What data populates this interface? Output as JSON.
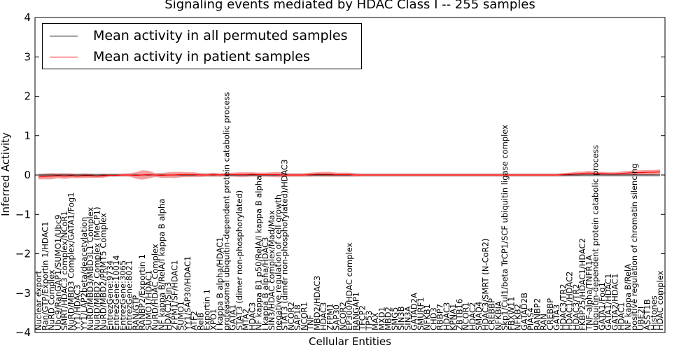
{
  "chart_data": {
    "type": "line",
    "title": "Signaling events mediated by HDAC Class I -- 255 samples",
    "xlabel": "Cellular Entities",
    "ylabel": "Inferred Activity",
    "ylim": [
      -4,
      4
    ],
    "yticks": [
      -4,
      -3,
      -2,
      -1,
      0,
      1,
      2,
      3,
      4
    ],
    "legend_position": "top-left",
    "colors": {
      "permuted": "#000000",
      "patient": "#ff0000",
      "band": "#f08080",
      "grey_band": "#c8c8c8"
    },
    "categories": [
      "Nuclear export",
      "Ran/GTP/Exportin 1/HDAC1",
      "NuRD Complex",
      "Ubc9/RanGAP1/SUMO1/Ubc9",
      "SMRT/HDAC3 complex/NCoR1",
      "NuRD/MBD3 Complex/GATA1/Fog1",
      "YY1/HDAC3",
      "YY1/LAP2beta/deacetylation",
      "NuRD/MBD3/MBD3L1 Complex",
      "NuRD/MBD2 Complex (MeCP1)",
      "NuRD/MBD2/PRMT5 Complex",
      "EntrezGene:9734",
      "EntrezGene:10014",
      "EntrezGene:3065",
      "EntrezGene:8021",
      "RAN/GTP",
      "RANBP2/Exportin 1",
      "SUMO1/HDAC1",
      "NuRD/HDAC Complex",
      "NF kappa B/RelA/I kappa B alpha",
      "HDAC1/Sin3",
      "ZFPM1/SF/HDAC1",
      "SUMO1",
      "YY1/SAP30/HDAC1",
      "ATF2",
      "RelB",
      "Exportin 1",
      "XPO1",
      "I kappa B alpha/HDAC1",
      "proteasomal ubiquitin-dependent protein catabolic process",
      "GATA1",
      "STAT3 (dimer non-phosphorylated)",
      "MTA2",
      "HDAC3",
      "NF kappa B1 p50/RelA/I kappa B alpha",
      "I kappa B alpha/HDAC3",
      "SIN3/HDAC complex/Mad/Max",
      "negative regulation of cell growth",
      "STAT3 (dimer non-phosphorylated)/HDAC3",
      "NCOR2",
      "SAP18",
      "NCOR1",
      "TNF",
      "MBD2/HDAC3",
      "HDAC3",
      "ZFPM1",
      "SAP30",
      "NCOR2",
      "EP300/HDAC complex",
      "RANGAP1",
      "TFCP2",
      "TP53",
      "MAX",
      "MXD1",
      "MBD2",
      "SMG5",
      "SIN3B",
      "SIN3A",
      "GATAD2A",
      "SMURF1",
      "NFKB1",
      "CHD3",
      "RBBP7",
      "HDAC3",
      "KPNA1",
      "ZBTB16",
      "NCOR1",
      "HDAC2",
      "SMAD4",
      "HDAC3/SMRT (N-CoR2)",
      "CREBBP",
      "NFKBIA",
      "Skp1/Cul1/beta TrCP1/SCF ubiquitin ligase complex",
      "FBXW11",
      "NFKB2",
      "GATAD2B",
      "PIAS4",
      "RANBP2",
      "RAN",
      "CREBBP",
      "GATA3",
      "HDAC3/TR2",
      "HDAC1/HDAC2",
      "HDAC3/TR2",
      "FKBP25/HDAC1/HDAC2",
      "TNF-alpha/TNFR1A",
      "ubiquitin-dependent protein catabolic process",
      "GATA1/Fog1",
      "GATA1/HDAC1",
      "GATA2/HDAC1",
      "HDAC1",
      "NF kappa B/RelA",
      "positive regulation of chromatin silencing",
      "UBE2I",
      "ASST1B",
      "Histones",
      "HDAC complex"
    ],
    "series": [
      {
        "name": "Mean activity in all permuted samples",
        "values": [
          0,
          0,
          0,
          0,
          0,
          0,
          0,
          0,
          0,
          0,
          0,
          0,
          0,
          0,
          0,
          0,
          0,
          0,
          0,
          0,
          0,
          0,
          0,
          0,
          0,
          0,
          0,
          0,
          0,
          0,
          0,
          0,
          0,
          0,
          0,
          0,
          0,
          0,
          0,
          0,
          0,
          0,
          0,
          0,
          0,
          0,
          0,
          0,
          0,
          0,
          0,
          0,
          0,
          0,
          0,
          0,
          0,
          0,
          0,
          0,
          0,
          0,
          0,
          0,
          0,
          0,
          0,
          0,
          0,
          0,
          0,
          0,
          0,
          0,
          0,
          0,
          0,
          0,
          0,
          0,
          0,
          0,
          0,
          0,
          0,
          0,
          0,
          0,
          0,
          0,
          0,
          0,
          0,
          0,
          0,
          0,
          0
        ]
      },
      {
        "name": "Mean activity in patient samples",
        "values": [
          -0.05,
          -0.04,
          -0.03,
          -0.02,
          -0.03,
          -0.02,
          -0.03,
          -0.02,
          -0.02,
          -0.03,
          -0.02,
          -0.01,
          -0.01,
          0,
          0,
          -0.01,
          0,
          0.01,
          0,
          -0.01,
          0,
          0,
          0.01,
          0.01,
          0.01,
          0,
          0,
          0.01,
          0,
          0.01,
          0.01,
          0.01,
          0.01,
          0.02,
          0.01,
          0.01,
          0.01,
          0.01,
          0,
          0,
          0,
          0,
          0.01,
          0.02,
          0.02,
          0.02,
          0.01,
          0.01,
          0.01,
          0,
          0,
          0,
          0,
          0,
          0,
          0,
          0,
          0,
          0,
          0,
          0,
          0,
          0,
          0,
          0,
          0,
          0,
          0,
          0,
          0,
          0,
          0,
          0,
          0,
          0,
          0,
          0,
          0,
          0,
          0,
          0,
          0.01,
          0.02,
          0.03,
          0.04,
          0.05,
          0.04,
          0.04,
          0.03,
          0.03,
          0.04,
          0.05,
          0.06,
          0.06,
          0.07,
          0.07,
          0.08
        ]
      }
    ],
    "patient_band_halfwidth": [
      0.06,
      0.07,
      0.08,
      0.06,
      0.07,
      0.06,
      0.05,
      0.06,
      0.05,
      0.04,
      0.05,
      0.03,
      0.03,
      0.03,
      0.04,
      0.08,
      0.12,
      0.1,
      0.05,
      0.06,
      0.07,
      0.08,
      0.07,
      0.06,
      0.06,
      0.05,
      0.04,
      0.05,
      0.04,
      0.04,
      0.05,
      0.06,
      0.06,
      0.05,
      0.05,
      0.05,
      0.06,
      0.07,
      0.05,
      0.04,
      0.04,
      0.04,
      0.05,
      0.05,
      0.06,
      0.06,
      0.05,
      0.05,
      0.05,
      0.04,
      0.03,
      0.03,
      0.03,
      0.03,
      0.03,
      0.03,
      0.03,
      0.03,
      0.03,
      0.03,
      0.03,
      0.03,
      0.03,
      0.03,
      0.03,
      0.03,
      0.03,
      0.03,
      0.03,
      0.03,
      0.03,
      0.03,
      0.03,
      0.03,
      0.03,
      0.03,
      0.03,
      0.03,
      0.03,
      0.03,
      0.03,
      0.04,
      0.04,
      0.05,
      0.05,
      0.05,
      0.05,
      0.04,
      0.04,
      0.04,
      0.05,
      0.05,
      0.06,
      0.06,
      0.06,
      0.06,
      0.06
    ],
    "permuted_band_halfwidth": 0.05
  }
}
